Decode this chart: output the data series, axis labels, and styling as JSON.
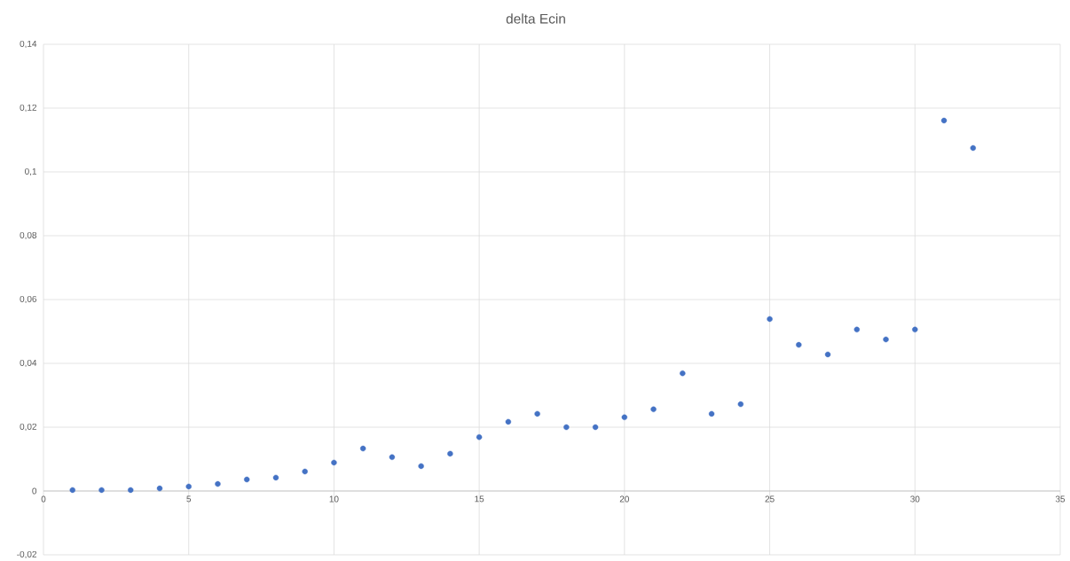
{
  "chart_data": {
    "type": "scatter",
    "title": "delta Ecin",
    "x": [
      1,
      2,
      3,
      4,
      5,
      6,
      7,
      8,
      9,
      10,
      11,
      12,
      13,
      14,
      15,
      16,
      17,
      18,
      19,
      20,
      21,
      22,
      23,
      24,
      25,
      26,
      27,
      28,
      29,
      30,
      31,
      32
    ],
    "values": [
      0.0003,
      0.0003,
      0.0003,
      0.0008,
      0.0014,
      0.0022,
      0.0036,
      0.0042,
      0.0061,
      0.0089,
      0.0133,
      0.0106,
      0.0078,
      0.0117,
      0.0169,
      0.0217,
      0.0242,
      0.02,
      0.02,
      0.0231,
      0.0256,
      0.0369,
      0.0242,
      0.0272,
      0.0539,
      0.0458,
      0.0428,
      0.0506,
      0.0475,
      0.0506,
      0.1161,
      0.1075
    ],
    "color": "#4472c4",
    "marker": "circle",
    "grid": true,
    "xlim": [
      0,
      35
    ],
    "xticks": [
      0,
      5,
      10,
      15,
      20,
      25,
      30,
      35
    ],
    "ylim": [
      -0.02,
      0.14
    ],
    "yticks": [
      {
        "value": -0.02,
        "label": "-0,02"
      },
      0,
      {
        "value": 0.02,
        "label": "0,02"
      },
      {
        "value": 0.04,
        "label": "0,04"
      },
      {
        "value": 0.06,
        "label": "0,06"
      },
      {
        "value": 0.08,
        "label": "0,08"
      },
      {
        "value": 0.1,
        "label": "0,1"
      },
      {
        "value": 0.12,
        "label": "0,12"
      },
      {
        "value": 0.14,
        "label": "0,14"
      }
    ]
  }
}
